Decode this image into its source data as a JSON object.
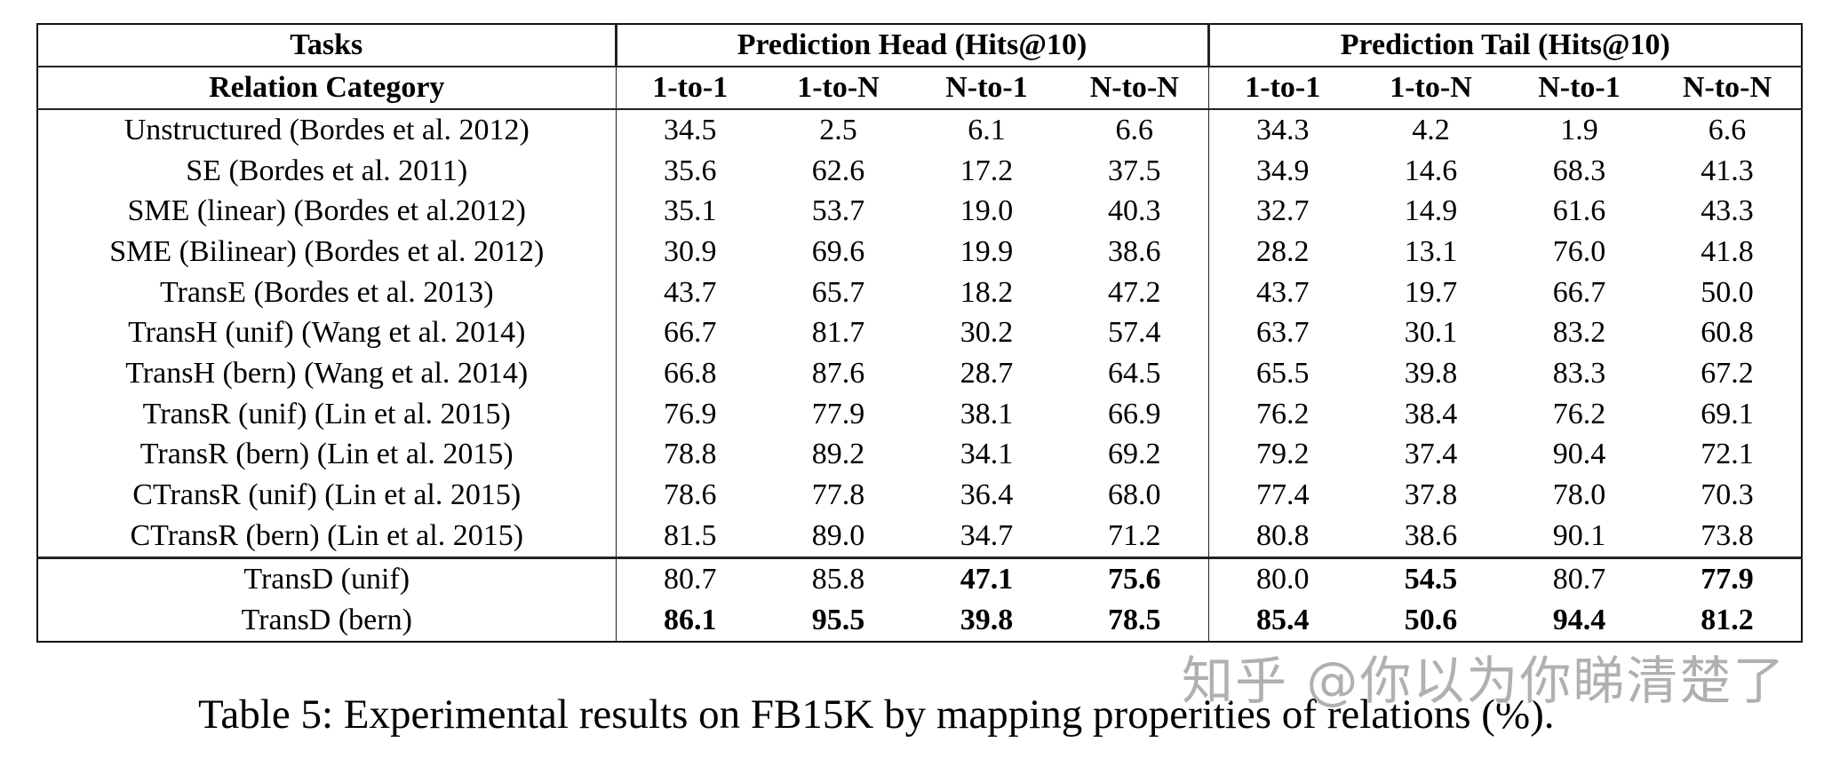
{
  "table": {
    "header_row1": {
      "tasks": "Tasks",
      "head_group": "Prediction Head (Hits@10)",
      "tail_group": "Prediction Tail (Hits@10)"
    },
    "header_row2": {
      "relation_category": "Relation Category",
      "head_cols": [
        "1-to-1",
        "1-to-N",
        "N-to-1",
        "N-to-N"
      ],
      "tail_cols": [
        "1-to-1",
        "1-to-N",
        "N-to-1",
        "N-to-N"
      ]
    },
    "rows": [
      {
        "name": "Unstructured (Bordes et al. 2012)",
        "head": [
          "34.5",
          "2.5",
          "6.1",
          "6.6"
        ],
        "tail": [
          "34.3",
          "4.2",
          "1.9",
          "6.6"
        ]
      },
      {
        "name": "SE (Bordes et al. 2011)",
        "head": [
          "35.6",
          "62.6",
          "17.2",
          "37.5"
        ],
        "tail": [
          "34.9",
          "14.6",
          "68.3",
          "41.3"
        ]
      },
      {
        "name": "SME (linear) (Bordes et al.2012)",
        "head": [
          "35.1",
          "53.7",
          "19.0",
          "40.3"
        ],
        "tail": [
          "32.7",
          "14.9",
          "61.6",
          "43.3"
        ]
      },
      {
        "name": "SME (Bilinear) (Bordes et al. 2012)",
        "head": [
          "30.9",
          "69.6",
          "19.9",
          "38.6"
        ],
        "tail": [
          "28.2",
          "13.1",
          "76.0",
          "41.8"
        ]
      },
      {
        "name": "TransE (Bordes et al. 2013)",
        "head": [
          "43.7",
          "65.7",
          "18.2",
          "47.2"
        ],
        "tail": [
          "43.7",
          "19.7",
          "66.7",
          "50.0"
        ]
      },
      {
        "name": "TransH (unif) (Wang et al. 2014)",
        "head": [
          "66.7",
          "81.7",
          "30.2",
          "57.4"
        ],
        "tail": [
          "63.7",
          "30.1",
          "83.2",
          "60.8"
        ]
      },
      {
        "name": "TransH (bern) (Wang et al. 2014)",
        "head": [
          "66.8",
          "87.6",
          "28.7",
          "64.5"
        ],
        "tail": [
          "65.5",
          "39.8",
          "83.3",
          "67.2"
        ]
      },
      {
        "name": "TransR (unif) (Lin et al. 2015)",
        "head": [
          "76.9",
          "77.9",
          "38.1",
          "66.9"
        ],
        "tail": [
          "76.2",
          "38.4",
          "76.2",
          "69.1"
        ]
      },
      {
        "name": "TransR (bern) (Lin et al. 2015)",
        "head": [
          "78.8",
          "89.2",
          "34.1",
          "69.2"
        ],
        "tail": [
          "79.2",
          "37.4",
          "90.4",
          "72.1"
        ]
      },
      {
        "name": "CTransR (unif) (Lin et al. 2015)",
        "head": [
          "78.6",
          "77.8",
          "36.4",
          "68.0"
        ],
        "tail": [
          "77.4",
          "37.8",
          "78.0",
          "70.3"
        ]
      },
      {
        "name": "CTransR (bern) (Lin et al. 2015)",
        "head": [
          "81.5",
          "89.0",
          "34.7",
          "71.2"
        ],
        "tail": [
          "80.8",
          "38.6",
          "90.1",
          "73.8"
        ]
      }
    ],
    "proposed_rows": [
      {
        "name": "TransD (unif)",
        "head": [
          "80.7",
          "85.8",
          "47.1",
          "75.6"
        ],
        "tail": [
          "80.0",
          "54.5",
          "80.7",
          "77.9"
        ],
        "head_bold": [
          false,
          false,
          true,
          true
        ],
        "tail_bold": [
          false,
          true,
          false,
          true
        ]
      },
      {
        "name": "TransD (bern)",
        "head": [
          "86.1",
          "95.5",
          "39.8",
          "78.5"
        ],
        "tail": [
          "85.4",
          "50.6",
          "94.4",
          "81.2"
        ],
        "head_bold": [
          true,
          true,
          true,
          true
        ],
        "tail_bold": [
          true,
          true,
          true,
          true
        ]
      }
    ]
  },
  "caption": "Table 5: Experimental results on FB15K by mapping properities of relations (%).",
  "watermark": "知乎 @你以为你睇清楚了"
}
